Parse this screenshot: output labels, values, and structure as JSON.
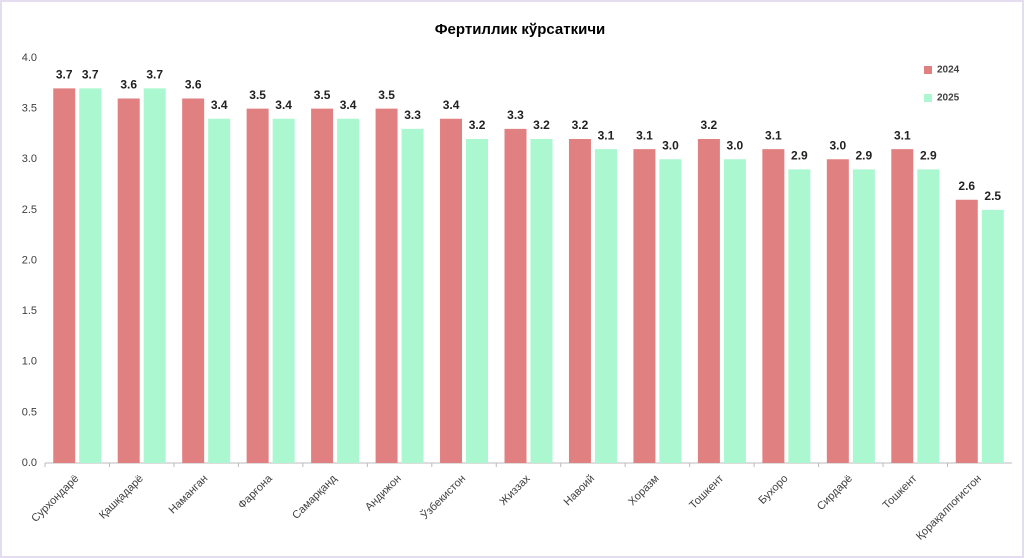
{
  "chart_data": {
    "type": "bar",
    "title": "Фертиллик кўрсаткичи",
    "categories": [
      "Сурхондарё",
      "Қашқадарё",
      "Наманган",
      "Фарғона",
      "Самарқанд",
      "Андижон",
      "Ўзбекистон",
      "Жиззах",
      "Навоий",
      "Хоразм",
      "Тошкент",
      "Бухоро",
      "Сирдарё",
      "Тошкент",
      "Қорақалпоғистон"
    ],
    "series": [
      {
        "name": "2024",
        "color": "#e08080",
        "values": [
          3.7,
          3.6,
          3.6,
          3.5,
          3.5,
          3.5,
          3.4,
          3.3,
          3.2,
          3.1,
          3.2,
          3.1,
          3.0,
          3.1,
          2.6
        ],
        "value_labels": [
          "3.7",
          "3.6",
          "3.6",
          "3.5",
          "3.5",
          "3.5",
          "3.4",
          "3.3",
          "3.2",
          "3.1",
          "3.2",
          "3.1",
          "3.0",
          "3.1",
          "2.6"
        ]
      },
      {
        "name": "2025",
        "color": "#aaf7d0",
        "values": [
          3.7,
          3.7,
          3.4,
          3.4,
          3.4,
          3.3,
          3.2,
          3.2,
          3.1,
          3.0,
          3.0,
          2.9,
          2.9,
          2.9,
          2.5
        ],
        "value_labels": [
          "3.7",
          "3.7",
          "3.4",
          "3.4",
          "3.4",
          "3.3",
          "3.2",
          "3.2",
          "3.1",
          "3.0",
          "3.0",
          "2.9",
          "2.9",
          "2.9",
          "2.5"
        ]
      }
    ],
    "ylim": [
      0,
      4
    ],
    "yticks": [
      {
        "value": 0,
        "label": "0.0"
      },
      0.5,
      {
        "value": 1,
        "label": "1.0"
      },
      1.5,
      {
        "value": 2,
        "label": "2.0"
      },
      2.5,
      {
        "value": 3,
        "label": "3.0"
      },
      3.5,
      {
        "value": 4,
        "label": "4.0"
      }
    ],
    "grid": false,
    "legend": "top-right"
  }
}
